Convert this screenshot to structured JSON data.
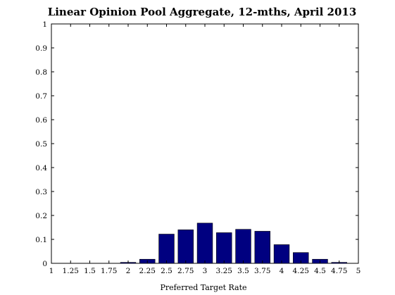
{
  "chart_data": {
    "type": "bar",
    "title": "Linear Opinion Pool Aggregate, 12-mths, April 2013",
    "xlabel": "Preferred Target Rate",
    "ylabel": "",
    "xlim": [
      1,
      5
    ],
    "ylim": [
      0,
      1
    ],
    "x_ticks": [
      1,
      1.25,
      1.5,
      1.75,
      2,
      2.25,
      2.5,
      2.75,
      3,
      3.25,
      3.5,
      3.75,
      4,
      4.25,
      4.5,
      4.75,
      5
    ],
    "x_tick_labels": [
      "1",
      "1.25",
      "1.5",
      "1.75",
      "2",
      "2.25",
      "2.5",
      "2.75",
      "3",
      "3.25",
      "3.5",
      "3.75",
      "4",
      "4.25",
      "4.5",
      "4.75",
      "5"
    ],
    "y_ticks": [
      0,
      0.1,
      0.2,
      0.3,
      0.4,
      0.5,
      0.6,
      0.7,
      0.8,
      0.9,
      1
    ],
    "y_tick_labels": [
      "0",
      "0.1",
      "0.2",
      "0.3",
      "0.4",
      "0.5",
      "0.6",
      "0.7",
      "0.8",
      "0.9",
      "1"
    ],
    "x": [
      1.25,
      1.5,
      1.75,
      2,
      2.25,
      2.5,
      2.75,
      3,
      3.25,
      3.5,
      3.75,
      4,
      4.25,
      4.5,
      4.75
    ],
    "values": [
      0,
      0,
      0,
      0.004,
      0.017,
      0.122,
      0.14,
      0.168,
      0.128,
      0.142,
      0.134,
      0.078,
      0.045,
      0.017,
      0.004
    ],
    "bar_color": "#000080",
    "grid": false,
    "legend": "none"
  }
}
